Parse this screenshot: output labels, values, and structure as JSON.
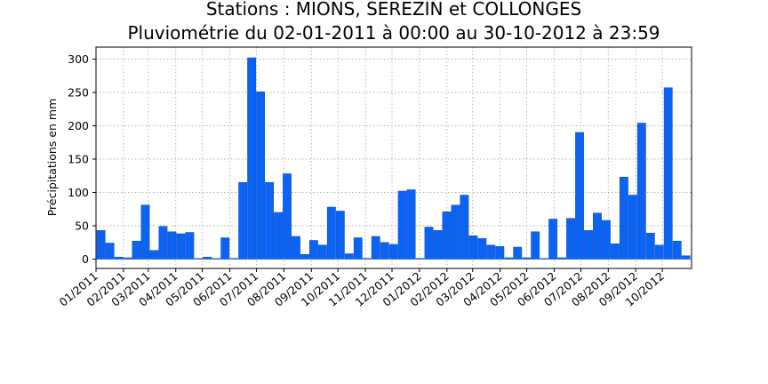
{
  "chart_data": {
    "type": "bar",
    "title_line1": "Stations : MIONS, SEREZIN et COLLONGES",
    "title_line2": "Pluviométrie du 02-01-2011 à 00:00 au 30-10-2012 à 23:59",
    "xlabel": "",
    "ylabel": "Précipitations en mm",
    "ylim": [
      -14,
      318
    ],
    "xlim": [
      "2011-01-01",
      "2012-11-03"
    ],
    "yticks": [
      0,
      50,
      100,
      150,
      200,
      250,
      300
    ],
    "xtick_labels": [
      "01/2011",
      "02/2011",
      "03/2011",
      "04/2011",
      "05/2011",
      "06/2011",
      "07/2011",
      "08/2011",
      "09/2011",
      "10/2011",
      "11/2011",
      "12/2011",
      "01/2012",
      "02/2012",
      "03/2012",
      "04/2012",
      "05/2012",
      "06/2012",
      "07/2012",
      "08/2012",
      "09/2012",
      "10/2012"
    ],
    "xtick_dates": [
      "2011-01-01",
      "2011-02-01",
      "2011-03-01",
      "2011-04-01",
      "2011-05-01",
      "2011-06-01",
      "2011-07-01",
      "2011-08-01",
      "2011-09-01",
      "2011-10-01",
      "2011-11-01",
      "2011-12-01",
      "2012-01-01",
      "2012-02-01",
      "2012-03-01",
      "2012-04-01",
      "2012-05-01",
      "2012-06-01",
      "2012-07-01",
      "2012-08-01",
      "2012-09-01",
      "2012-10-01"
    ],
    "grid": true,
    "bar_color": "#0b63f2",
    "bar_edge_color": "#1a4fd0",
    "x": [
      "2011-01-02",
      "2011-01-12",
      "2011-01-22",
      "2011-02-01",
      "2011-02-11",
      "2011-02-21",
      "2011-03-03",
      "2011-03-13",
      "2011-03-23",
      "2011-04-02",
      "2011-04-12",
      "2011-04-22",
      "2011-05-02",
      "2011-05-12",
      "2011-05-22",
      "2011-06-01",
      "2011-06-11",
      "2011-06-21",
      "2011-07-01",
      "2011-07-11",
      "2011-07-21",
      "2011-07-31",
      "2011-08-10",
      "2011-08-20",
      "2011-08-30",
      "2011-09-09",
      "2011-09-19",
      "2011-09-29",
      "2011-10-09",
      "2011-10-19",
      "2011-10-29",
      "2011-11-08",
      "2011-11-18",
      "2011-11-28",
      "2011-12-08",
      "2011-12-18",
      "2011-12-28",
      "2012-01-07",
      "2012-01-17",
      "2012-01-27",
      "2012-02-06",
      "2012-02-16",
      "2012-02-26",
      "2012-03-07",
      "2012-03-17",
      "2012-03-27",
      "2012-04-06",
      "2012-04-16",
      "2012-04-26",
      "2012-05-06",
      "2012-05-16",
      "2012-05-26",
      "2012-06-05",
      "2012-06-15",
      "2012-06-25",
      "2012-07-05",
      "2012-07-15",
      "2012-07-25",
      "2012-08-04",
      "2012-08-14",
      "2012-08-24",
      "2012-09-03",
      "2012-09-13",
      "2012-09-23",
      "2012-10-03",
      "2012-10-13",
      "2012-10-23"
    ],
    "values": [
      43,
      24,
      3,
      2,
      27,
      81,
      13,
      49,
      41,
      38,
      40,
      1,
      3,
      1,
      32,
      1,
      115,
      302,
      251,
      115,
      70,
      128,
      34,
      7,
      28,
      21,
      78,
      72,
      8,
      32,
      1,
      34,
      25,
      22,
      102,
      104,
      1,
      48,
      43,
      71,
      81,
      96,
      35,
      31,
      21,
      19,
      2,
      18,
      2,
      41,
      1,
      60,
      2,
      61,
      190,
      43,
      69,
      58,
      23,
      123,
      96,
      204,
      39,
      21,
      257,
      27,
      5
    ]
  }
}
